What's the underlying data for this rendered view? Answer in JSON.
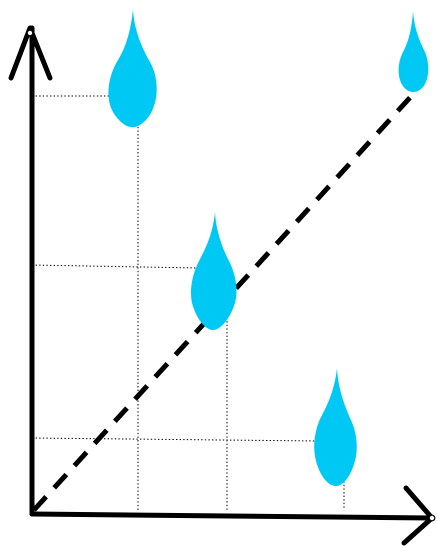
{
  "diagram": {
    "kind": "raindrop-scatter-with-dashed-trend",
    "marker": "water-drop-icon",
    "drop_color": "#00c8f5",
    "line_color": "#000000",
    "axis_color": "#000000",
    "grid_style": "dotted",
    "trend_style": "dashed",
    "drops_plotted": 4
  }
}
